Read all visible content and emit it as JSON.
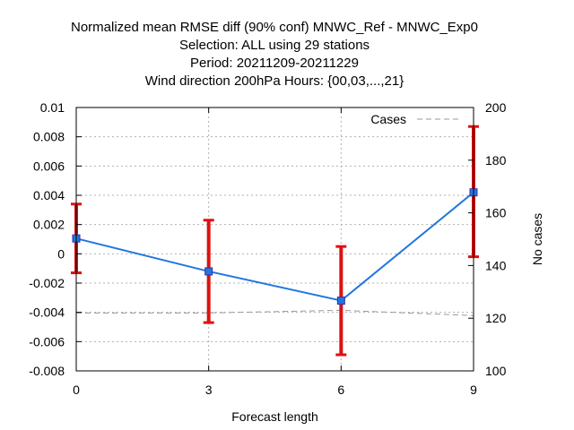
{
  "chart_data": {
    "type": "line",
    "title_lines": [
      "Normalized mean RMSE diff (90% conf) MNWC_Ref - MNWC_Exp0",
      "Selection: ALL using    29 stations",
      "Period: 20211209-20211229",
      "Wind direction 200hPa   Hours: {00,03,...,21}"
    ],
    "xlabel": "Forecast length",
    "ylabel": "",
    "y2label": "No cases",
    "x": [
      0,
      3,
      6,
      9
    ],
    "xlim": [
      0,
      9
    ],
    "ylim": [
      -0.008,
      0.01
    ],
    "y2lim": [
      100,
      200
    ],
    "x_ticks": [
      "0",
      "3",
      "6",
      "9"
    ],
    "y_ticks": [
      "0.01",
      "0.008",
      "0.006",
      "0.004",
      "0.002",
      "0",
      "-0.002",
      "-0.004",
      "-0.006",
      "-0.008"
    ],
    "y2_ticks": [
      "200",
      "180",
      "160",
      "140",
      "120",
      "100"
    ],
    "grid": true,
    "legend_position": "top-right",
    "series": [
      {
        "values": [
          0.00105,
          -0.0012,
          -0.0032,
          0.0042
        ],
        "err_low": [
          -0.0013,
          -0.0047,
          -0.0069,
          -0.0002
        ],
        "err_high": [
          0.0034,
          0.0023,
          0.0005,
          0.0087
        ],
        "color": "#1f77e0",
        "err_color": "#dd1111",
        "axis": "y1"
      },
      {
        "name": "Cases",
        "values": [
          122,
          122,
          123,
          121
        ],
        "color": "#999999",
        "dashed": true,
        "axis": "y2"
      }
    ]
  }
}
